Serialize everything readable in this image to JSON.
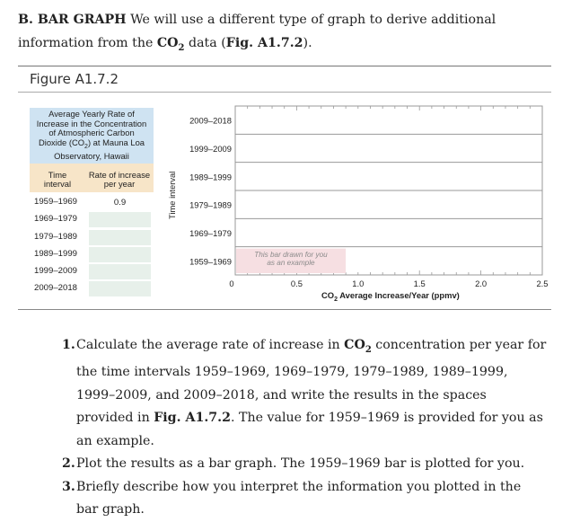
{
  "intro": {
    "label": "B. BAR GRAPH",
    "text1": " We will use a different type of graph to derive additional information from the ",
    "co2_prefix": "CO",
    "co2_sub": "2",
    "text2": " data (",
    "fig_ref": "Fig. A1.7.2",
    "text3": ")."
  },
  "figure": {
    "title": "Figure A1.7.2",
    "table": {
      "header_lines": [
        "Average Yearly Rate of",
        "Increase in the Concentration",
        "of Atmospheric Carbon",
        "Dioxide (CO",
        "2",
        ") at Mauna Loa",
        "Observatory, Hawaii"
      ],
      "col1": [
        "Time",
        "interval"
      ],
      "col2": [
        "Rate of increase",
        "per year"
      ],
      "rows": [
        {
          "interval": "1959–1969",
          "value": "0.9"
        },
        {
          "interval": "1969–1979",
          "value": ""
        },
        {
          "interval": "1979–1989",
          "value": ""
        },
        {
          "interval": "1989–1999",
          "value": ""
        },
        {
          "interval": "1999–2009",
          "value": ""
        },
        {
          "interval": "2009–2018",
          "value": ""
        }
      ]
    },
    "ylabel": "Time interval",
    "xlabel_prefix": "CO",
    "xlabel_sub": "2",
    "xlabel_rest": " Average Increase/Year (ppmv)",
    "example_note": [
      "This bar drawn for you",
      "as an example"
    ]
  },
  "chart_data": {
    "type": "bar",
    "orientation": "horizontal",
    "categories": [
      "1959–1969",
      "1969–1979",
      "1979–1989",
      "1989–1999",
      "1999–2009",
      "2009–2018"
    ],
    "values": [
      0.9,
      null,
      null,
      null,
      null,
      null
    ],
    "xlabel": "CO2 Average Increase/Year (ppmv)",
    "ylabel": "Time interval",
    "xlim": [
      0,
      2.5
    ],
    "xticks": [
      "0",
      "0.5",
      "1.0",
      "1.5",
      "2.0",
      "2.5"
    ],
    "bar_color": "#f6dfe2",
    "grid": true
  },
  "questions": [
    {
      "num": "1.",
      "parts": [
        "Calculate the average rate of increase in ",
        "CO",
        "2",
        " concentration per year for the time intervals 1959–1969, 1969–1979, 1979–1989, 1989–1999, 1999–2009, and 2009–2018, and write the results in the spaces provided in ",
        "Fig. A1.7.2",
        ". The value for 1959–1969 is provided for you as an example."
      ]
    },
    {
      "num": "2.",
      "text": "Plot the results as a bar graph. The 1959–1969 bar is plotted for you."
    },
    {
      "num": "3.",
      "text": "Briefly describe how you interpret the information you plotted in the bar graph."
    }
  ]
}
